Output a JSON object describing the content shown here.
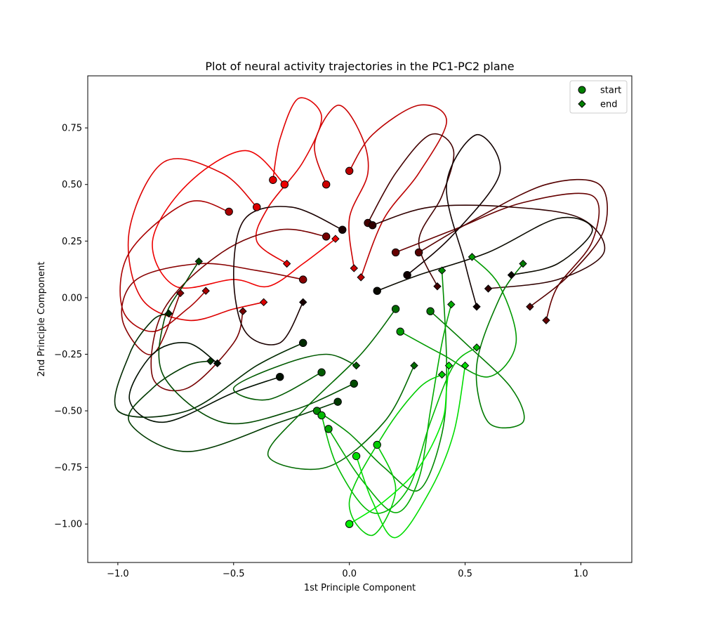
{
  "chart_data": {
    "type": "line",
    "title": "Plot of neural activity trajectories in the PC1-PC2 plane",
    "xlabel": "1st Principle Component",
    "ylabel": "2nd Principle Component",
    "xlim": [
      -1.13,
      1.22
    ],
    "ylim": [
      -1.17,
      0.98
    ],
    "xticks": [
      -1.0,
      -0.5,
      0.0,
      0.5,
      1.0
    ],
    "xtick_labels": [
      "−1.0",
      "−0.5",
      "0.0",
      "0.5",
      "1.0"
    ],
    "yticks": [
      -1.0,
      -0.75,
      -0.5,
      -0.25,
      0.0,
      0.25,
      0.5,
      0.75
    ],
    "ytick_labels": [
      "−1.00",
      "−0.75",
      "−0.50",
      "−0.25",
      "0.00",
      "0.25",
      "0.50",
      "0.75"
    ],
    "grid": false,
    "legend": {
      "position": "top-right",
      "entries": [
        {
          "label": "start",
          "marker": "circle",
          "color": "#008000"
        },
        {
          "label": "end",
          "marker": "diamond",
          "color": "#008000"
        }
      ]
    },
    "colors": {
      "red": "#ee0000",
      "dark_red": "#660000",
      "dark": "#110000",
      "dark_green": "#004400",
      "green": "#008800",
      "bright_green": "#00ee00"
    },
    "series": [
      {
        "color": "#ee0000",
        "start": [
          -0.28,
          0.5
        ],
        "end": [
          -0.06,
          0.26
        ],
        "points": [
          [
            -0.28,
            0.5
          ],
          [
            -0.45,
            0.65
          ],
          [
            -0.7,
            0.5
          ],
          [
            -0.85,
            0.25
          ],
          [
            -0.75,
            0.05
          ],
          [
            -0.5,
            0.08
          ],
          [
            -0.35,
            0.05
          ],
          [
            -0.2,
            0.15
          ],
          [
            -0.06,
            0.26
          ]
        ]
      },
      {
        "color": "#dd0000",
        "start": [
          -0.4,
          0.4
        ],
        "end": [
          -0.37,
          -0.02
        ],
        "points": [
          [
            -0.4,
            0.4
          ],
          [
            -0.55,
            0.55
          ],
          [
            -0.8,
            0.6
          ],
          [
            -0.95,
            0.3
          ],
          [
            -0.9,
            0.0
          ],
          [
            -0.7,
            -0.1
          ],
          [
            -0.5,
            -0.05
          ],
          [
            -0.37,
            -0.02
          ]
        ]
      },
      {
        "color": "#e00000",
        "start": [
          -0.33,
          0.52
        ],
        "end": [
          -0.27,
          0.15
        ],
        "points": [
          [
            -0.33,
            0.52
          ],
          [
            -0.3,
            0.7
          ],
          [
            -0.22,
            0.88
          ],
          [
            -0.12,
            0.8
          ],
          [
            -0.2,
            0.6
          ],
          [
            -0.35,
            0.4
          ],
          [
            -0.4,
            0.25
          ],
          [
            -0.27,
            0.15
          ]
        ]
      },
      {
        "color": "#cc0000",
        "start": [
          -0.1,
          0.5
        ],
        "end": [
          0.02,
          0.13
        ],
        "points": [
          [
            -0.1,
            0.5
          ],
          [
            -0.15,
            0.68
          ],
          [
            -0.05,
            0.85
          ],
          [
            0.05,
            0.72
          ],
          [
            0.08,
            0.55
          ],
          [
            0.0,
            0.35
          ],
          [
            0.02,
            0.13
          ]
        ]
      },
      {
        "color": "#bb0000",
        "start": [
          0.0,
          0.56
        ],
        "end": [
          0.05,
          0.09
        ],
        "points": [
          [
            0.0,
            0.56
          ],
          [
            0.1,
            0.72
          ],
          [
            0.3,
            0.85
          ],
          [
            0.42,
            0.78
          ],
          [
            0.3,
            0.55
          ],
          [
            0.15,
            0.35
          ],
          [
            0.05,
            0.09
          ]
        ]
      },
      {
        "color": "#aa0000",
        "start": [
          -0.52,
          0.38
        ],
        "end": [
          -0.62,
          0.03
        ],
        "points": [
          [
            -0.52,
            0.38
          ],
          [
            -0.7,
            0.42
          ],
          [
            -0.95,
            0.2
          ],
          [
            -0.98,
            -0.05
          ],
          [
            -0.85,
            -0.15
          ],
          [
            -0.7,
            -0.05
          ],
          [
            -0.62,
            0.03
          ]
        ]
      },
      {
        "color": "#880000",
        "start": [
          -0.2,
          0.08
        ],
        "end": [
          -0.73,
          0.02
        ],
        "points": [
          [
            -0.2,
            0.08
          ],
          [
            -0.4,
            0.12
          ],
          [
            -0.65,
            0.15
          ],
          [
            -0.92,
            0.08
          ],
          [
            -0.98,
            -0.1
          ],
          [
            -0.85,
            -0.25
          ],
          [
            -0.73,
            0.02
          ]
        ]
      },
      {
        "color": "#770000",
        "start": [
          -0.1,
          0.27
        ],
        "end": [
          -0.46,
          -0.06
        ],
        "points": [
          [
            -0.1,
            0.27
          ],
          [
            -0.3,
            0.3
          ],
          [
            -0.55,
            0.2
          ],
          [
            -0.8,
            -0.05
          ],
          [
            -0.85,
            -0.35
          ],
          [
            -0.7,
            -0.4
          ],
          [
            -0.5,
            -0.2
          ],
          [
            -0.46,
            -0.06
          ]
        ]
      },
      {
        "color": "#660000",
        "start": [
          0.2,
          0.2
        ],
        "end": [
          0.85,
          -0.1
        ],
        "points": [
          [
            0.2,
            0.2
          ],
          [
            0.45,
            0.3
          ],
          [
            0.75,
            0.42
          ],
          [
            1.05,
            0.45
          ],
          [
            1.05,
            0.25
          ],
          [
            0.9,
            0.05
          ],
          [
            0.85,
            -0.1
          ]
        ]
      },
      {
        "color": "#550000",
        "start": [
          0.3,
          0.2
        ],
        "end": [
          0.78,
          -0.04
        ],
        "points": [
          [
            0.3,
            0.2
          ],
          [
            0.55,
            0.35
          ],
          [
            0.85,
            0.5
          ],
          [
            1.08,
            0.5
          ],
          [
            1.1,
            0.3
          ],
          [
            0.95,
            0.1
          ],
          [
            0.78,
            -0.04
          ]
        ]
      },
      {
        "color": "#440000",
        "start": [
          0.08,
          0.33
        ],
        "end": [
          0.38,
          0.05
        ],
        "points": [
          [
            0.08,
            0.33
          ],
          [
            0.2,
            0.55
          ],
          [
            0.35,
            0.72
          ],
          [
            0.45,
            0.65
          ],
          [
            0.4,
            0.45
          ],
          [
            0.3,
            0.25
          ],
          [
            0.38,
            0.05
          ]
        ]
      },
      {
        "color": "#300000",
        "start": [
          0.1,
          0.32
        ],
        "end": [
          0.6,
          0.04
        ],
        "points": [
          [
            0.1,
            0.32
          ],
          [
            0.35,
            0.4
          ],
          [
            0.7,
            0.4
          ],
          [
            1.0,
            0.35
          ],
          [
            1.1,
            0.2
          ],
          [
            0.9,
            0.08
          ],
          [
            0.6,
            0.04
          ]
        ]
      },
      {
        "color": "#1a0000",
        "start": [
          -0.03,
          0.3
        ],
        "end": [
          -0.2,
          -0.02
        ],
        "points": [
          [
            -0.03,
            0.3
          ],
          [
            -0.25,
            0.4
          ],
          [
            -0.45,
            0.35
          ],
          [
            -0.5,
            0.1
          ],
          [
            -0.45,
            -0.15
          ],
          [
            -0.3,
            -0.2
          ],
          [
            -0.2,
            -0.02
          ]
        ]
      },
      {
        "color": "#100000",
        "start": [
          0.25,
          0.1
        ],
        "end": [
          0.55,
          -0.04
        ],
        "points": [
          [
            0.25,
            0.1
          ],
          [
            0.45,
            0.28
          ],
          [
            0.65,
            0.55
          ],
          [
            0.55,
            0.72
          ],
          [
            0.42,
            0.5
          ],
          [
            0.5,
            0.15
          ],
          [
            0.55,
            -0.04
          ]
        ]
      },
      {
        "color": "#0a0a00",
        "start": [
          0.12,
          0.03
        ],
        "end": [
          0.7,
          0.1
        ],
        "points": [
          [
            0.12,
            0.03
          ],
          [
            0.3,
            0.1
          ],
          [
            0.6,
            0.2
          ],
          [
            0.9,
            0.35
          ],
          [
            1.05,
            0.3
          ],
          [
            0.9,
            0.15
          ],
          [
            0.7,
            0.1
          ]
        ]
      },
      {
        "color": "#001000",
        "start": [
          -0.3,
          -0.35
        ],
        "end": [
          -0.57,
          -0.29
        ],
        "points": [
          [
            -0.3,
            -0.35
          ],
          [
            -0.5,
            -0.42
          ],
          [
            -0.8,
            -0.55
          ],
          [
            -0.95,
            -0.45
          ],
          [
            -0.85,
            -0.25
          ],
          [
            -0.7,
            -0.2
          ],
          [
            -0.57,
            -0.29
          ]
        ]
      },
      {
        "color": "#002a00",
        "start": [
          -0.2,
          -0.2
        ],
        "end": [
          -0.78,
          -0.07
        ],
        "points": [
          [
            -0.2,
            -0.2
          ],
          [
            -0.4,
            -0.3
          ],
          [
            -0.7,
            -0.5
          ],
          [
            -1.0,
            -0.5
          ],
          [
            -0.95,
            -0.25
          ],
          [
            -0.85,
            -0.1
          ],
          [
            -0.78,
            -0.07
          ]
        ]
      },
      {
        "color": "#003a00",
        "start": [
          -0.05,
          -0.46
        ],
        "end": [
          -0.6,
          -0.28
        ],
        "points": [
          [
            -0.05,
            -0.46
          ],
          [
            -0.3,
            -0.55
          ],
          [
            -0.7,
            -0.68
          ],
          [
            -0.95,
            -0.55
          ],
          [
            -0.85,
            -0.4
          ],
          [
            -0.7,
            -0.3
          ],
          [
            -0.6,
            -0.28
          ]
        ]
      },
      {
        "color": "#004a00",
        "start": [
          0.02,
          -0.38
        ],
        "end": [
          -0.65,
          0.16
        ],
        "points": [
          [
            0.02,
            -0.38
          ],
          [
            -0.25,
            -0.5
          ],
          [
            -0.55,
            -0.55
          ],
          [
            -0.8,
            -0.35
          ],
          [
            -0.8,
            -0.1
          ],
          [
            -0.7,
            0.08
          ],
          [
            -0.65,
            0.16
          ]
        ]
      },
      {
        "color": "#005a00",
        "start": [
          -0.12,
          -0.33
        ],
        "end": [
          0.03,
          -0.3
        ],
        "points": [
          [
            -0.12,
            -0.33
          ],
          [
            -0.35,
            -0.45
          ],
          [
            -0.5,
            -0.4
          ],
          [
            -0.3,
            -0.3
          ],
          [
            -0.1,
            -0.25
          ],
          [
            0.03,
            -0.3
          ]
        ]
      },
      {
        "color": "#006a00",
        "start": [
          0.2,
          -0.05
        ],
        "end": [
          0.28,
          -0.3
        ],
        "points": [
          [
            0.2,
            -0.05
          ],
          [
            0.05,
            -0.25
          ],
          [
            -0.2,
            -0.5
          ],
          [
            -0.35,
            -0.7
          ],
          [
            -0.1,
            -0.75
          ],
          [
            0.15,
            -0.55
          ],
          [
            0.28,
            -0.3
          ]
        ]
      },
      {
        "color": "#007a00",
        "start": [
          0.35,
          -0.06
        ],
        "end": [
          0.75,
          0.15
        ],
        "points": [
          [
            0.35,
            -0.06
          ],
          [
            0.5,
            -0.2
          ],
          [
            0.7,
            -0.4
          ],
          [
            0.75,
            -0.55
          ],
          [
            0.6,
            -0.55
          ],
          [
            0.55,
            -0.3
          ],
          [
            0.65,
            0.0
          ],
          [
            0.75,
            0.15
          ]
        ]
      },
      {
        "color": "#008a00",
        "start": [
          -0.14,
          -0.5
        ],
        "end": [
          0.4,
          0.12
        ],
        "points": [
          [
            -0.14,
            -0.5
          ],
          [
            0.0,
            -0.6
          ],
          [
            0.15,
            -0.75
          ],
          [
            0.3,
            -0.85
          ],
          [
            0.4,
            -0.6
          ],
          [
            0.42,
            -0.3
          ],
          [
            0.4,
            0.12
          ]
        ]
      },
      {
        "color": "#009a00",
        "start": [
          0.22,
          -0.15
        ],
        "end": [
          0.53,
          0.18
        ],
        "points": [
          [
            0.22,
            -0.15
          ],
          [
            0.4,
            -0.25
          ],
          [
            0.6,
            -0.35
          ],
          [
            0.72,
            -0.2
          ],
          [
            0.65,
            0.05
          ],
          [
            0.53,
            0.18
          ]
        ]
      },
      {
        "color": "#00aa00",
        "start": [
          -0.09,
          -0.58
        ],
        "end": [
          0.44,
          -0.03
        ],
        "points": [
          [
            -0.09,
            -0.58
          ],
          [
            0.05,
            -0.8
          ],
          [
            0.2,
            -0.95
          ],
          [
            0.3,
            -0.8
          ],
          [
            0.35,
            -0.5
          ],
          [
            0.4,
            -0.2
          ],
          [
            0.44,
            -0.03
          ]
        ]
      },
      {
        "color": "#00bb00",
        "start": [
          -0.12,
          -0.52
        ],
        "end": [
          0.55,
          -0.22
        ],
        "points": [
          [
            -0.12,
            -0.52
          ],
          [
            -0.05,
            -0.75
          ],
          [
            0.1,
            -0.95
          ],
          [
            0.25,
            -0.85
          ],
          [
            0.35,
            -0.55
          ],
          [
            0.45,
            -0.3
          ],
          [
            0.55,
            -0.22
          ]
        ]
      },
      {
        "color": "#00cc00",
        "start": [
          0.12,
          -0.65
        ],
        "end": [
          0.4,
          -0.34
        ],
        "points": [
          [
            0.12,
            -0.65
          ],
          [
            0.2,
            -0.85
          ],
          [
            0.1,
            -1.05
          ],
          [
            0.0,
            -0.9
          ],
          [
            0.15,
            -0.6
          ],
          [
            0.3,
            -0.4
          ],
          [
            0.4,
            -0.34
          ]
        ]
      },
      {
        "color": "#00dd00",
        "start": [
          0.03,
          -0.7
        ],
        "end": [
          0.5,
          -0.3
        ],
        "points": [
          [
            0.03,
            -0.7
          ],
          [
            0.1,
            -0.9
          ],
          [
            0.2,
            -1.06
          ],
          [
            0.35,
            -0.85
          ],
          [
            0.45,
            -0.6
          ],
          [
            0.5,
            -0.3
          ]
        ]
      },
      {
        "color": "#00ee00",
        "start": [
          0.0,
          -1.0
        ],
        "end": [
          0.43,
          -0.3
        ],
        "points": [
          [
            0.0,
            -1.0
          ],
          [
            0.15,
            -0.9
          ],
          [
            0.3,
            -0.75
          ],
          [
            0.4,
            -0.55
          ],
          [
            0.42,
            -0.4
          ],
          [
            0.43,
            -0.3
          ]
        ]
      }
    ]
  }
}
